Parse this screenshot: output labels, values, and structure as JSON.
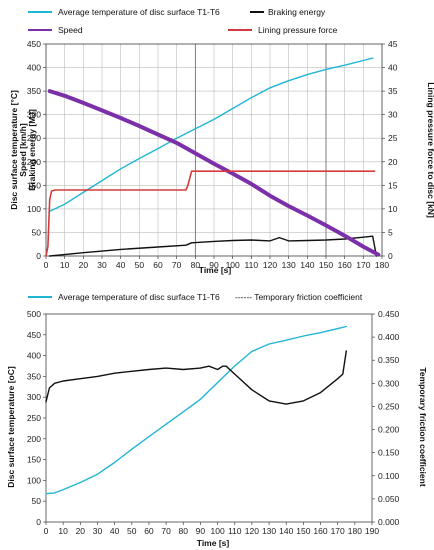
{
  "chart_data": [
    {
      "type": "line",
      "xlabel": "Time [s]",
      "ylabel_left": [
        "Disc surface temperature [°C]",
        "Speed [km/h]",
        "Braking energy [MJ]"
      ],
      "ylabel_right": "Lining pressure force to disc [kN]",
      "xlim": [
        0,
        180
      ],
      "xticks": [
        0,
        10,
        20,
        30,
        40,
        50,
        60,
        70,
        80,
        90,
        100,
        110,
        120,
        130,
        140,
        150,
        160,
        170,
        180
      ],
      "ylim_left": [
        0,
        450
      ],
      "yticks_left": [
        0,
        50,
        100,
        150,
        200,
        250,
        300,
        350,
        400,
        450
      ],
      "ylim_right": [
        0,
        45
      ],
      "yticks_right": [
        0,
        5,
        10,
        15,
        20,
        25,
        30,
        35,
        40,
        45
      ],
      "grid": true,
      "legend_position": "top",
      "series": [
        {
          "name": "Average temperature of disc surface  T1-T6",
          "color": "#1fb6d4",
          "axis": "left",
          "x": [
            2,
            10,
            20,
            30,
            40,
            50,
            60,
            70,
            80,
            90,
            100,
            110,
            120,
            130,
            140,
            150,
            160,
            170,
            175
          ],
          "y": [
            95,
            110,
            135,
            160,
            185,
            207,
            228,
            250,
            270,
            290,
            313,
            336,
            357,
            372,
            385,
            396,
            405,
            415,
            420
          ]
        },
        {
          "name": "Braking energy",
          "color": "#111111",
          "axis": "left",
          "x": [
            2,
            20,
            40,
            60,
            75,
            78,
            90,
            100,
            110,
            120,
            125,
            130,
            140,
            150,
            160,
            170,
            175,
            177
          ],
          "y": [
            0,
            7,
            14,
            19,
            23,
            28,
            31,
            33,
            34,
            32,
            39,
            32,
            33,
            34,
            36,
            40,
            42,
            0
          ]
        },
        {
          "name": "Speed",
          "color": "#7b2fa8",
          "axis": "left",
          "x": [
            2,
            10,
            20,
            30,
            40,
            50,
            60,
            70,
            80,
            90,
            100,
            110,
            120,
            130,
            140,
            150,
            160,
            170,
            178
          ],
          "y": [
            350,
            340,
            325,
            309,
            293,
            276,
            258,
            240,
            218,
            196,
            175,
            153,
            128,
            106,
            86,
            65,
            43,
            20,
            3
          ]
        },
        {
          "name": "Lining pressure force",
          "color": "#d63a3a",
          "axis": "right",
          "x": [
            0,
            1,
            2,
            3,
            5,
            60,
            75,
            76,
            78,
            90,
            120,
            150,
            175,
            176
          ],
          "y": [
            0,
            2,
            12,
            13.8,
            14,
            14,
            14,
            15,
            18,
            18,
            18,
            18,
            18,
            18
          ]
        }
      ]
    },
    {
      "type": "line",
      "xlabel": "Time [s]",
      "ylabel_left": "Disc surface temperature [oC]",
      "ylabel_right": "Temporary friction coefficient",
      "xlim": [
        0,
        190
      ],
      "xticks": [
        0,
        10,
        20,
        30,
        40,
        50,
        60,
        70,
        80,
        90,
        100,
        110,
        120,
        130,
        140,
        150,
        160,
        170,
        180,
        190
      ],
      "ylim_left": [
        0,
        500
      ],
      "yticks_left": [
        0,
        50,
        100,
        150,
        200,
        250,
        300,
        350,
        400,
        450,
        500
      ],
      "ylim_right": [
        0,
        0.45
      ],
      "yticks_right": [
        "0.000",
        "0.050",
        "0.100",
        "0.150",
        "0.200",
        "0.250",
        "0.300",
        "0.350",
        "0.400",
        "0.450"
      ],
      "grid": false,
      "legend_position": "top",
      "series": [
        {
          "name": "Average temperature of disc surface T1-T6",
          "color": "#1fb6d4",
          "axis": "left",
          "x": [
            0,
            5,
            10,
            20,
            30,
            40,
            50,
            60,
            70,
            80,
            90,
            100,
            110,
            120,
            130,
            140,
            150,
            160,
            170,
            175
          ],
          "y": [
            68,
            70,
            78,
            95,
            115,
            143,
            175,
            205,
            235,
            265,
            295,
            335,
            375,
            410,
            428,
            437,
            447,
            455,
            465,
            470
          ]
        },
        {
          "name": "------ Temporary friction coefficient",
          "color": "#111111",
          "axis": "right",
          "x": [
            0,
            2,
            5,
            10,
            20,
            30,
            40,
            50,
            60,
            70,
            80,
            90,
            95,
            100,
            103,
            105,
            110,
            120,
            130,
            140,
            150,
            160,
            170,
            173,
            175
          ],
          "y": [
            0.26,
            0.29,
            0.3,
            0.305,
            0.31,
            0.315,
            0.322,
            0.326,
            0.33,
            0.333,
            0.33,
            0.333,
            0.337,
            0.33,
            0.337,
            0.337,
            0.32,
            0.286,
            0.262,
            0.255,
            0.262,
            0.28,
            0.31,
            0.32,
            0.37
          ]
        }
      ]
    }
  ]
}
